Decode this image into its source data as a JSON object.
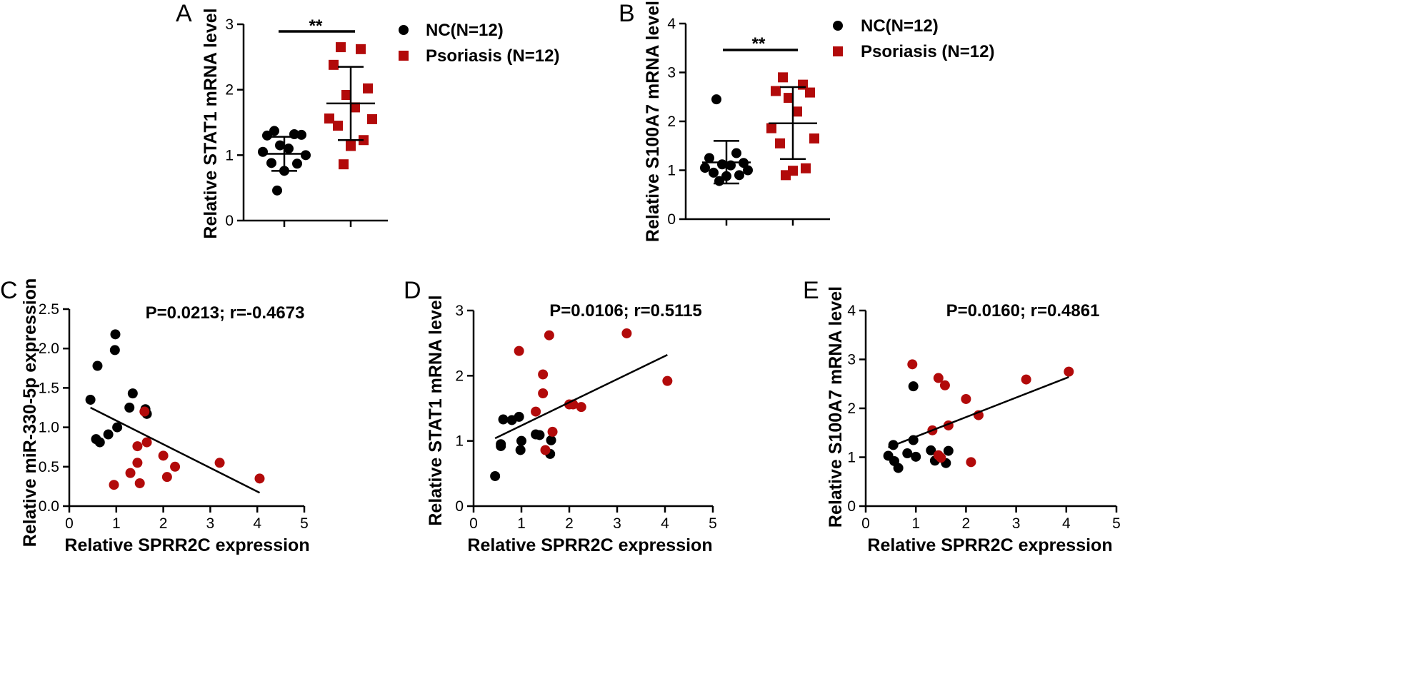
{
  "colors": {
    "nc": "#000000",
    "psoriasis": "#b20a0a",
    "axis": "#000000"
  },
  "legend": {
    "nc_label": "NC(N=12)",
    "psoriasis_label": "Psoriasis (N=12)"
  },
  "chart_data": [
    {
      "panel": "A",
      "type": "scatter",
      "ylabel": "Relative STAT1 mRNA level",
      "xlabel": "",
      "ylim": [
        0,
        3
      ],
      "yticks": [
        "0",
        "1",
        "2",
        "3"
      ],
      "significance": "**",
      "legend_position": "top-right",
      "series": [
        {
          "name": "NC(N=12)",
          "marker": "circle",
          "mean": 1.02,
          "sd_low": 0.76,
          "sd_high": 1.28,
          "values": [
            1.37,
            1.32,
            1.3,
            1.31,
            1.15,
            1.1,
            1.05,
            1.0,
            0.88,
            0.87,
            0.76,
            0.46
          ]
        },
        {
          "name": "Psoriasis (N=12)",
          "marker": "square",
          "mean": 1.79,
          "sd_low": 1.23,
          "sd_high": 2.35,
          "values": [
            2.65,
            2.62,
            2.38,
            2.02,
            1.92,
            1.73,
            1.56,
            1.55,
            1.45,
            1.23,
            1.14,
            0.86
          ]
        }
      ]
    },
    {
      "panel": "B",
      "type": "scatter",
      "ylabel": "Relative S100A7 mRNA level",
      "xlabel": "",
      "ylim": [
        0,
        4
      ],
      "yticks": [
        "0",
        "1",
        "2",
        "3",
        "4"
      ],
      "significance": "**",
      "legend_position": "top-right",
      "series": [
        {
          "name": "NC(N=12)",
          "marker": "circle",
          "mean": 1.16,
          "sd_low": 0.73,
          "sd_high": 1.6,
          "values": [
            2.45,
            1.35,
            1.25,
            1.15,
            1.12,
            1.1,
            1.05,
            1.0,
            0.95,
            0.9,
            0.88,
            0.78
          ]
        },
        {
          "name": "Psoriasis (N=12)",
          "marker": "square",
          "mean": 1.96,
          "sd_low": 1.23,
          "sd_high": 2.7,
          "values": [
            2.9,
            2.75,
            2.62,
            2.59,
            2.48,
            2.2,
            1.86,
            1.65,
            1.55,
            1.04,
            0.99,
            0.9
          ]
        }
      ]
    },
    {
      "panel": "C",
      "type": "scatter",
      "xlabel": "Relative SPRR2C expression",
      "ylabel": "Relative miR-330-5p expression",
      "xlim": [
        0,
        5
      ],
      "ylim": [
        0,
        2.5
      ],
      "xticks": [
        "0",
        "1",
        "2",
        "3",
        "4",
        "5"
      ],
      "yticks": [
        "0.0",
        "0.5",
        "1.0",
        "1.5",
        "2.0",
        "2.5"
      ],
      "annotation": "P=0.0213; r=-0.4673",
      "fit_line": {
        "x": [
          0.45,
          4.05
        ],
        "y": [
          1.25,
          0.17
        ]
      },
      "series": [
        {
          "name": "NC",
          "points": [
            [
              0.45,
              1.35
            ],
            [
              0.6,
              1.78
            ],
            [
              0.57,
              0.85
            ],
            [
              0.65,
              0.81
            ],
            [
              0.83,
              0.91
            ],
            [
              0.98,
              2.18
            ],
            [
              0.97,
              1.98
            ],
            [
              1.02,
              1.0
            ],
            [
              1.28,
              1.25
            ],
            [
              1.35,
              1.43
            ],
            [
              1.62,
              1.23
            ],
            [
              1.65,
              1.17
            ]
          ]
        },
        {
          "name": "Psoriasis",
          "points": [
            [
              0.95,
              0.27
            ],
            [
              1.3,
              0.42
            ],
            [
              1.45,
              0.76
            ],
            [
              1.45,
              0.55
            ],
            [
              1.5,
              0.29
            ],
            [
              1.6,
              1.2
            ],
            [
              1.65,
              0.81
            ],
            [
              2.0,
              0.64
            ],
            [
              2.08,
              0.37
            ],
            [
              2.25,
              0.5
            ],
            [
              3.2,
              0.55
            ],
            [
              4.05,
              0.35
            ]
          ]
        }
      ]
    },
    {
      "panel": "D",
      "type": "scatter",
      "xlabel": "Relative SPRR2C expression",
      "ylabel": "Relative STAT1 mRNA level",
      "xlim": [
        0,
        5
      ],
      "ylim": [
        0,
        3
      ],
      "xticks": [
        "0",
        "1",
        "2",
        "3",
        "4",
        "5"
      ],
      "yticks": [
        "0",
        "1",
        "2",
        "3"
      ],
      "annotation": "P=0.0106; r=0.5115",
      "fit_line": {
        "x": [
          0.45,
          4.05
        ],
        "y": [
          1.04,
          2.32
        ]
      },
      "series": [
        {
          "name": "NC",
          "points": [
            [
              0.45,
              0.46
            ],
            [
              0.57,
              0.95
            ],
            [
              0.57,
              0.92
            ],
            [
              0.62,
              1.33
            ],
            [
              0.8,
              1.32
            ],
            [
              0.95,
              1.37
            ],
            [
              0.98,
              0.86
            ],
            [
              1.0,
              1.0
            ],
            [
              1.3,
              1.1
            ],
            [
              1.38,
              1.09
            ],
            [
              1.6,
              0.8
            ],
            [
              1.62,
              1.01
            ]
          ]
        },
        {
          "name": "Psoriasis",
          "points": [
            [
              0.95,
              2.38
            ],
            [
              1.3,
              1.45
            ],
            [
              1.45,
              2.02
            ],
            [
              1.45,
              1.73
            ],
            [
              1.5,
              0.86
            ],
            [
              1.58,
              2.62
            ],
            [
              1.65,
              1.14
            ],
            [
              2.0,
              1.56
            ],
            [
              2.08,
              1.56
            ],
            [
              2.25,
              1.52
            ],
            [
              3.2,
              2.65
            ],
            [
              4.05,
              1.92
            ]
          ]
        }
      ]
    },
    {
      "panel": "E",
      "type": "scatter",
      "xlabel": "Relative SPRR2C expression",
      "ylabel": "Relative S100A7 mRNA level",
      "xlim": [
        0,
        5
      ],
      "ylim": [
        0,
        4
      ],
      "xticks": [
        "0",
        "1",
        "2",
        "3",
        "4",
        "5"
      ],
      "yticks": [
        "0",
        "1",
        "2",
        "3",
        "4"
      ],
      "annotation": "P=0.0160; r=0.4861",
      "fit_line": {
        "x": [
          0.45,
          4.05
        ],
        "y": [
          1.2,
          2.64
        ]
      },
      "series": [
        {
          "name": "NC",
          "points": [
            [
              0.45,
              1.03
            ],
            [
              0.55,
              1.25
            ],
            [
              0.57,
              0.92
            ],
            [
              0.65,
              0.78
            ],
            [
              0.83,
              1.08
            ],
            [
              0.95,
              1.35
            ],
            [
              0.95,
              2.45
            ],
            [
              1.0,
              1.01
            ],
            [
              1.3,
              1.14
            ],
            [
              1.38,
              0.93
            ],
            [
              1.6,
              0.88
            ],
            [
              1.65,
              1.13
            ]
          ]
        },
        {
          "name": "Psoriasis",
          "points": [
            [
              0.93,
              2.9
            ],
            [
              1.33,
              1.55
            ],
            [
              1.45,
              2.62
            ],
            [
              1.45,
              1.04
            ],
            [
              1.5,
              0.99
            ],
            [
              1.58,
              2.47
            ],
            [
              1.65,
              1.65
            ],
            [
              2.0,
              2.19
            ],
            [
              2.1,
              0.9
            ],
            [
              2.25,
              1.86
            ],
            [
              3.2,
              2.59
            ],
            [
              4.05,
              2.75
            ]
          ]
        }
      ]
    }
  ]
}
